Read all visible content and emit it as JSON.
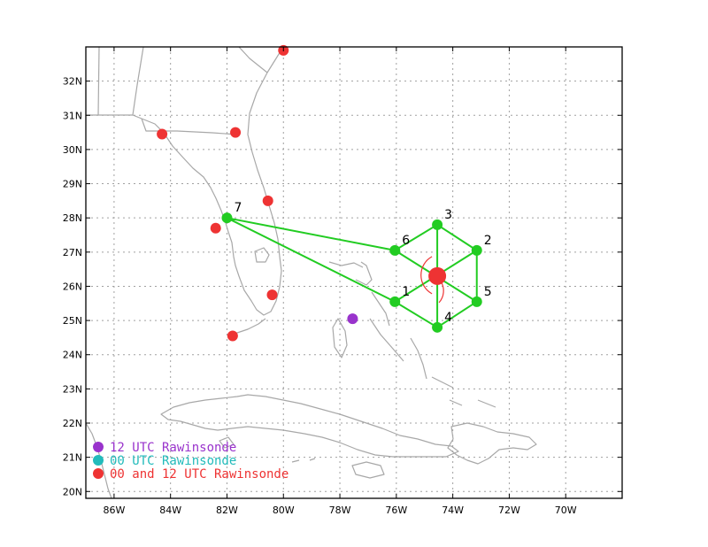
{
  "colors": {
    "background": "#ffffff",
    "frame": "#000000",
    "grid": "#a0a0a0",
    "coast": "#a8a8a8",
    "track": "#22cc22",
    "drop_point": "#22cc22",
    "rawinsonde_12": "#9933cc",
    "rawinsonde_00": "#22bbbb",
    "rawinsonde_00_12": "#ee3333",
    "center": "#ee3333"
  },
  "axes": {
    "lon_range": [
      -87,
      -68
    ],
    "lat_range": [
      19.8,
      33
    ],
    "lon_ticks": [
      {
        "value": -86,
        "label": "86W"
      },
      {
        "value": -84,
        "label": "84W"
      },
      {
        "value": -82,
        "label": "82W"
      },
      {
        "value": -80,
        "label": "80W"
      },
      {
        "value": -78,
        "label": "78W"
      },
      {
        "value": -76,
        "label": "76W"
      },
      {
        "value": -74,
        "label": "74W"
      },
      {
        "value": -72,
        "label": "72W"
      },
      {
        "value": -70,
        "label": "70W"
      }
    ],
    "lat_ticks": [
      {
        "value": 20,
        "label": "20N"
      },
      {
        "value": 21,
        "label": "21N"
      },
      {
        "value": 22,
        "label": "22N"
      },
      {
        "value": 23,
        "label": "23N"
      },
      {
        "value": 24,
        "label": "24N"
      },
      {
        "value": 25,
        "label": "25N"
      },
      {
        "value": 26,
        "label": "26N"
      },
      {
        "value": 27,
        "label": "27N"
      },
      {
        "value": 28,
        "label": "28N"
      },
      {
        "value": 29,
        "label": "29N"
      },
      {
        "value": 30,
        "label": "30N"
      },
      {
        "value": 31,
        "label": "31N"
      },
      {
        "value": 32,
        "label": "32N"
      }
    ],
    "grid": true
  },
  "storm_center": {
    "lon": -74.55,
    "lat": 26.3
  },
  "flight_points": [
    {
      "label": "1",
      "lon": -76.05,
      "lat": 25.55
    },
    {
      "label": "2",
      "lon": -73.15,
      "lat": 27.05
    },
    {
      "label": "3",
      "lon": -74.55,
      "lat": 27.8
    },
    {
      "label": "4",
      "lon": -74.55,
      "lat": 24.8
    },
    {
      "label": "5",
      "lon": -73.15,
      "lat": 25.55
    },
    {
      "label": "6",
      "lon": -76.05,
      "lat": 27.05
    },
    {
      "label": "7",
      "lon": -82.0,
      "lat": 28.0
    }
  ],
  "flight_track_order": [
    "7",
    "6",
    "3",
    "2",
    "5",
    "4",
    "1",
    "7"
  ],
  "flight_spokes": [
    [
      "6",
      "5"
    ],
    [
      "3",
      "4"
    ],
    [
      "1",
      "2"
    ]
  ],
  "rawinsondes": {
    "twelve_utc": [
      {
        "lon": -77.55,
        "lat": 25.05
      }
    ],
    "zero_and_twelve_utc": [
      {
        "lon": -80.0,
        "lat": 32.9
      },
      {
        "lon": -84.3,
        "lat": 30.45
      },
      {
        "lon": -81.7,
        "lat": 30.5
      },
      {
        "lon": -80.55,
        "lat": 28.5
      },
      {
        "lon": -82.4,
        "lat": 27.7
      },
      {
        "lon": -80.4,
        "lat": 25.75
      },
      {
        "lon": -81.8,
        "lat": 24.55
      }
    ]
  },
  "legend": [
    {
      "text": "12 UTC Rawinsonde",
      "color_key": "rawinsonde_12"
    },
    {
      "text": "00 UTC Rawinsonde",
      "color_key": "rawinsonde_00"
    },
    {
      "text": "00 and 12 UTC Rawinsonde",
      "color_key": "rawinsonde_00_12"
    }
  ]
}
